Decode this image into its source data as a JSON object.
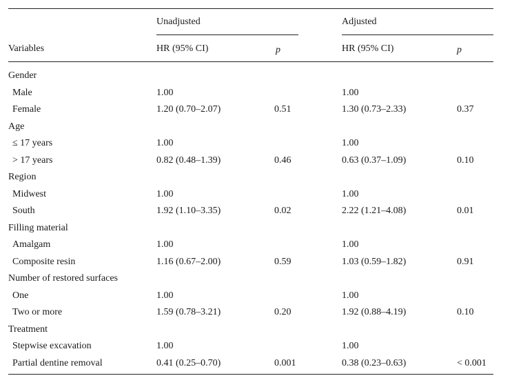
{
  "header": {
    "unadjusted": "Unadjusted",
    "adjusted": "Adjusted",
    "variables": "Variables",
    "hr_unadj": "HR (95% CI)",
    "p_unadj": "p",
    "hr_adj": "HR (95% CI)",
    "p_adj": "p"
  },
  "rows": [
    {
      "label": "Gender",
      "group": true,
      "hr_u": "",
      "p_u": "",
      "hr_a": "",
      "p_a": ""
    },
    {
      "label": "Male",
      "group": false,
      "hr_u": "1.00",
      "p_u": "",
      "hr_a": "1.00",
      "p_a": ""
    },
    {
      "label": "Female",
      "group": false,
      "hr_u": "1.20 (0.70–2.07)",
      "p_u": "0.51",
      "hr_a": "1.30 (0.73–2.33)",
      "p_a": "0.37"
    },
    {
      "label": "Age",
      "group": true,
      "hr_u": "",
      "p_u": "",
      "hr_a": "",
      "p_a": ""
    },
    {
      "label": "≤ 17 years",
      "group": false,
      "hr_u": "1.00",
      "p_u": "",
      "hr_a": "1.00",
      "p_a": ""
    },
    {
      "label": "> 17 years",
      "group": false,
      "hr_u": "0.82 (0.48–1.39)",
      "p_u": "0.46",
      "hr_a": "0.63 (0.37–1.09)",
      "p_a": "0.10"
    },
    {
      "label": "Region",
      "group": true,
      "hr_u": "",
      "p_u": "",
      "hr_a": "",
      "p_a": ""
    },
    {
      "label": "Midwest",
      "group": false,
      "hr_u": "1.00",
      "p_u": "",
      "hr_a": "1.00",
      "p_a": ""
    },
    {
      "label": "South",
      "group": false,
      "hr_u": "1.92 (1.10–3.35)",
      "p_u": "0.02",
      "hr_a": "2.22 (1.21–4.08)",
      "p_a": "0.01"
    },
    {
      "label": "Filling material",
      "group": true,
      "hr_u": "",
      "p_u": "",
      "hr_a": "",
      "p_a": ""
    },
    {
      "label": "Amalgam",
      "group": false,
      "hr_u": "1.00",
      "p_u": "",
      "hr_a": "1.00",
      "p_a": ""
    },
    {
      "label": "Composite resin",
      "group": false,
      "hr_u": "1.16 (0.67–2.00)",
      "p_u": "0.59",
      "hr_a": "1.03 (0.59–1.82)",
      "p_a": "0.91"
    },
    {
      "label": "Number of restored surfaces",
      "group": true,
      "hr_u": "",
      "p_u": "",
      "hr_a": "",
      "p_a": ""
    },
    {
      "label": "One",
      "group": false,
      "hr_u": "1.00",
      "p_u": "",
      "hr_a": "1.00",
      "p_a": ""
    },
    {
      "label": "Two or more",
      "group": false,
      "hr_u": "1.59 (0.78–3.21)",
      "p_u": "0.20",
      "hr_a": "1.92 (0.88–4.19)",
      "p_a": "0.10"
    },
    {
      "label": "Treatment",
      "group": true,
      "hr_u": "",
      "p_u": "",
      "hr_a": "",
      "p_a": ""
    },
    {
      "label": "Stepwise excavation",
      "group": false,
      "hr_u": "1.00",
      "p_u": "",
      "hr_a": "1.00",
      "p_a": ""
    },
    {
      "label": "Partial dentine removal",
      "group": false,
      "hr_u": "0.41 (0.25–0.70)",
      "p_u": "0.001",
      "hr_a": "0.38 (0.23–0.63)",
      "p_a": "< 0.001"
    }
  ]
}
